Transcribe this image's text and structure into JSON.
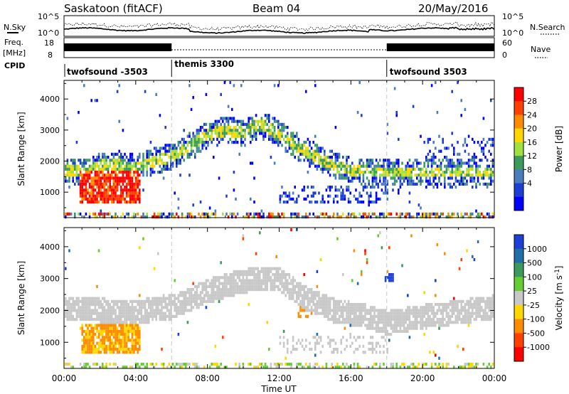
{
  "header": {
    "station": "Saskatoon (fitACF)",
    "beam": "Beam 04",
    "date": "20/May/2016"
  },
  "top_panels": {
    "nsky_label": "N.Sky",
    "nsky_ticks": [
      "10^5",
      "10^0"
    ],
    "nsky_right_ticks": [
      "10^5",
      "10^0"
    ],
    "nsearch_label": "N.Search",
    "freq_label_1": "Freq.",
    "freq_label_2": "[MHz]",
    "freq_ticks": [
      "18",
      "8"
    ],
    "nave_ticks": [
      "60",
      "0"
    ],
    "nave_label": "Nave",
    "cpid_label": "CPID",
    "cpid_segments": [
      {
        "label": "twofsound -3503",
        "start_hour": 0,
        "end_hour": 6
      },
      {
        "label": "themis 3300",
        "start_hour": 6,
        "end_hour": 18
      },
      {
        "label": "twofsound 3503",
        "start_hour": 18,
        "end_hour": 24
      }
    ]
  },
  "chart_data": [
    {
      "type": "heatmap",
      "quantity": "Power",
      "ylabel": "Slant Range [km]",
      "ylim": [
        180,
        4600
      ],
      "yticks": [
        1000,
        2000,
        3000,
        4000
      ],
      "colorbar_label": "Power [dB]",
      "colorbar_ticks": [
        "28",
        "24",
        "20",
        "16",
        "12",
        "8",
        "4"
      ],
      "colorbar_colors": [
        "#ff0000",
        "#ff4000",
        "#ff8c00",
        "#ffd700",
        "#a0e040",
        "#3c9a5c",
        "#4a7dbd",
        "#1d3fd6",
        "#0000ff"
      ],
      "echo_bands": [
        {
          "hours": [
            0.0,
            1.0,
            2.0,
            3.0,
            4.0,
            5.0,
            6.0,
            7.0,
            8.0,
            9.0,
            10.0,
            10.8,
            11.5,
            12.0,
            13.0,
            14.0,
            15.0,
            16.0,
            17.0
          ],
          "km": [
            1750,
            1700,
            1900,
            1950,
            1850,
            2050,
            2200,
            2550,
            2900,
            3050,
            2950,
            3200,
            3100,
            2900,
            2500,
            2200,
            1900,
            1750,
            1700
          ],
          "thickness_km": 300
        }
      ],
      "hot_region": {
        "hours": [
          0.8,
          4.2
        ],
        "km": [
          650,
          1700
        ],
        "peak_db": 28
      }
    },
    {
      "type": "heatmap",
      "quantity": "Velocity",
      "ylabel": "Slant Range [km]",
      "ylim": [
        180,
        4600
      ],
      "yticks": [
        1000,
        2000,
        3000,
        4000
      ],
      "colorbar_label": "Velocity [m s^-1]",
      "colorbar_ticks": [
        "1000",
        "500",
        "100",
        "25",
        "-25",
        "-100",
        "-500",
        "-1000"
      ],
      "colorbar_colors": [
        "#1d3fd6",
        "#1f6fa8",
        "#3c9a5c",
        "#66cc33",
        "#c8c8c8",
        "#ffd700",
        "#ff8c00",
        "#ff4000",
        "#ff0000"
      ],
      "ground_scatter_band": {
        "hours": [
          0.0,
          2.0,
          4.0,
          6.0,
          8.0,
          9.5,
          10.8,
          12.0,
          13.5,
          15.0,
          16.5,
          18.0,
          20.0,
          22.0,
          24.0
        ],
        "km": [
          2100,
          2050,
          2000,
          2150,
          2650,
          2900,
          3050,
          3000,
          2400,
          2050,
          1900,
          1650,
          1850,
          2000,
          2150
        ]
      },
      "orange_region": {
        "hours": [
          0.9,
          4.2
        ],
        "km": [
          700,
          1600
        ],
        "velocity": -500
      }
    }
  ],
  "xaxis": {
    "label": "Time UT",
    "ticks": [
      "00:00",
      "04:00",
      "08:00",
      "12:00",
      "16:00",
      "20:00",
      "00:00"
    ],
    "range_hours": [
      0,
      24
    ]
  }
}
